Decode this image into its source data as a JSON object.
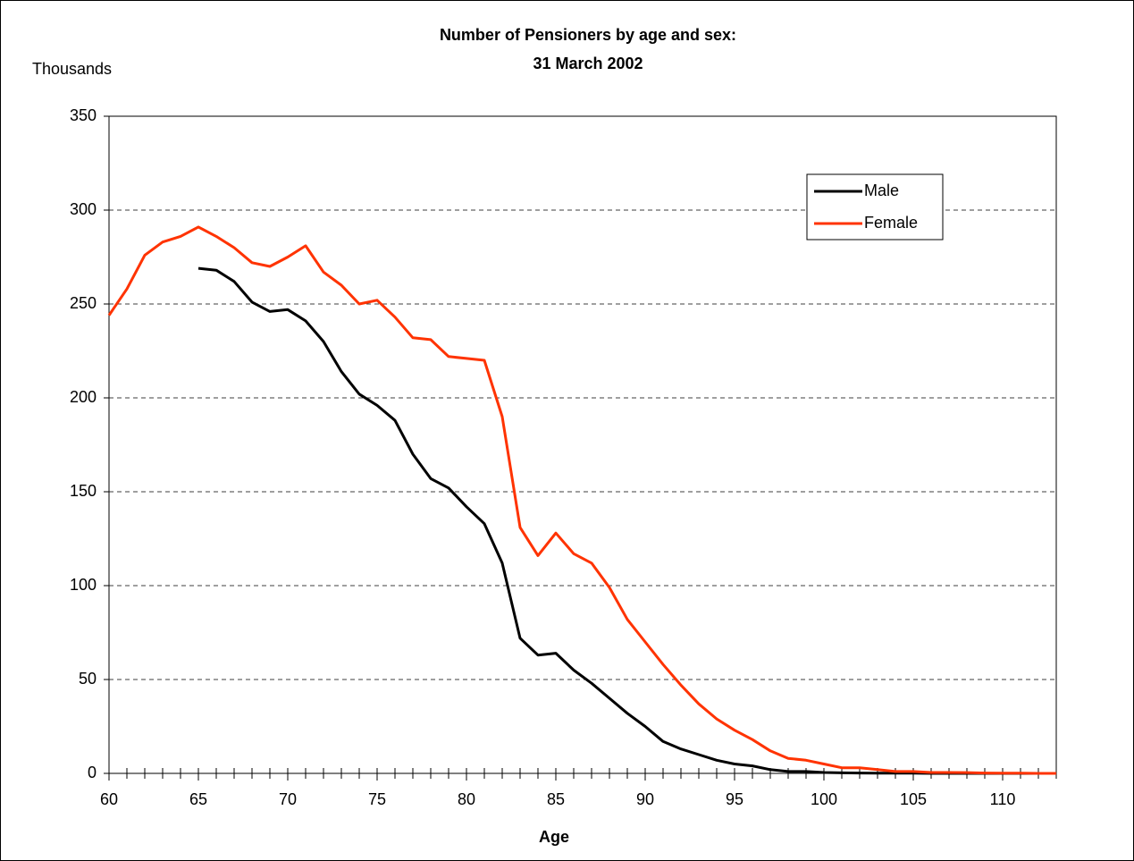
{
  "chart_data": {
    "type": "line",
    "title": "Number of Pensioners by age and sex:",
    "subtitle": "31 March 2002",
    "y_label": "Thousands",
    "x_label": "Age",
    "x": [
      60,
      61,
      62,
      63,
      64,
      65,
      66,
      67,
      68,
      69,
      70,
      71,
      72,
      73,
      74,
      75,
      76,
      77,
      78,
      79,
      80,
      81,
      82,
      83,
      84,
      85,
      86,
      87,
      88,
      89,
      90,
      91,
      92,
      93,
      94,
      95,
      96,
      97,
      98,
      99,
      100,
      101,
      102,
      103,
      104,
      105,
      106,
      107,
      108,
      109,
      110,
      111,
      112,
      113
    ],
    "series": [
      {
        "name": "Male",
        "color": "#000000",
        "values": [
          null,
          null,
          null,
          null,
          null,
          269,
          268,
          262,
          251,
          246,
          247,
          241,
          230,
          214,
          202,
          196,
          188,
          170,
          157,
          152,
          142,
          133,
          112,
          72,
          63,
          64,
          55,
          48,
          40,
          32,
          25,
          17,
          13,
          10,
          7,
          5,
          4,
          2,
          1,
          1,
          0.5,
          0.3,
          0.2,
          0.1,
          0.1,
          0.1,
          0,
          0,
          0,
          0,
          0,
          0,
          0,
          0
        ]
      },
      {
        "name": "Female",
        "color": "#ff3300",
        "values": [
          244,
          258,
          276,
          283,
          286,
          291,
          286,
          280,
          272,
          270,
          275,
          281,
          267,
          260,
          250,
          252,
          243,
          232,
          231,
          222,
          221,
          220,
          190,
          131,
          116,
          128,
          117,
          112,
          99,
          82,
          70,
          58,
          47,
          37,
          29,
          23,
          18,
          12,
          8,
          7,
          5,
          3,
          3,
          2,
          1,
          1,
          0.5,
          0.5,
          0.4,
          0.2,
          0.1,
          0.1,
          0,
          0
        ]
      }
    ],
    "xlim": [
      60,
      113
    ],
    "xticks": [
      60,
      65,
      70,
      75,
      80,
      85,
      90,
      95,
      100,
      105,
      110
    ],
    "ylim": [
      0,
      350
    ],
    "yticks": [
      0,
      50,
      100,
      150,
      200,
      250,
      300,
      350
    ],
    "grid": true,
    "legend": "upper right"
  }
}
